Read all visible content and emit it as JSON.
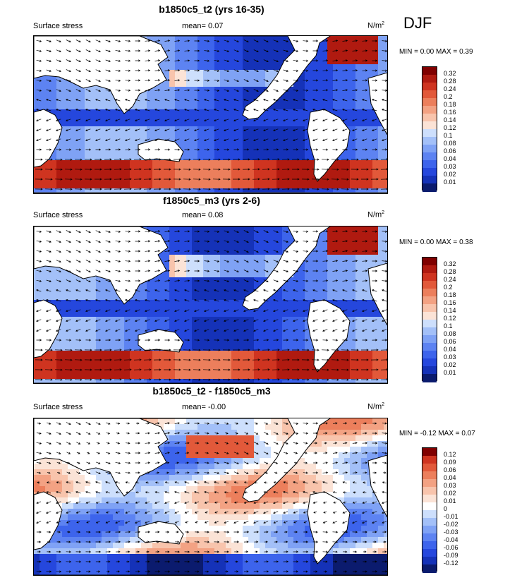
{
  "season": "DJF",
  "colors": {
    "full": [
      "#0b1b6e",
      "#1532b8",
      "#2547dd",
      "#3d64ec",
      "#5d83f2",
      "#7fa2f5",
      "#a3c0f8",
      "#cddffc",
      "#fbe3d6",
      "#f8c4ac",
      "#f3a283",
      "#ec7f5c",
      "#e2593a",
      "#cf3420",
      "#b01a10",
      "#800000"
    ],
    "diff": [
      "#0b1b6e",
      "#1532b8",
      "#2547dd",
      "#3d64ec",
      "#5d83f2",
      "#7fa2f5",
      "#a3c0f8",
      "#cddffc",
      "#ffffff",
      "#fbe3d6",
      "#f8c4ac",
      "#f3a283",
      "#ec7f5c",
      "#e2593a",
      "#cf3420",
      "#800000"
    ]
  },
  "panels": [
    {
      "title": "b1850c5_t2 (yrs 16-35)",
      "variable": "Surface stress",
      "mean_label": "mean=",
      "mean_value": "0.07",
      "units": "N/m",
      "units_sup": "2",
      "min_label": "MIN =",
      "min_value": "0.00",
      "max_label": "MAX =",
      "max_value": "0.39",
      "colorbar_labels": [
        "0.32",
        "0.28",
        "0.24",
        "0.2",
        "0.18",
        "0.16",
        "0.14",
        "0.12",
        "0.1",
        "0.08",
        "0.06",
        "0.04",
        "0.03",
        "0.02",
        "0.01"
      ]
    },
    {
      "title": "f1850c5_m3 (yrs 2-6)",
      "variable": "Surface stress",
      "mean_label": "mean=",
      "mean_value": "0.08",
      "units": "N/m",
      "units_sup": "2",
      "min_label": "MIN =",
      "min_value": "0.00",
      "max_label": "MAX =",
      "max_value": "0.38",
      "colorbar_labels": [
        "0.32",
        "0.28",
        "0.24",
        "0.2",
        "0.18",
        "0.16",
        "0.14",
        "0.12",
        "0.1",
        "0.08",
        "0.06",
        "0.04",
        "0.03",
        "0.02",
        "0.01"
      ]
    },
    {
      "title": "b1850c5_t2 - f1850c5_m3",
      "variable": "Surface stress",
      "mean_label": "mean=",
      "mean_value": "-0.00",
      "units": "N/m",
      "units_sup": "2",
      "min_label": "MIN =",
      "min_value": "-0.12",
      "max_label": "MAX =",
      "max_value": "0.07",
      "colorbar_labels": [
        "0.12",
        "0.09",
        "0.06",
        "0.04",
        "0.03",
        "0.02",
        "0.01",
        "0",
        "-0.01",
        "-0.02",
        "-0.03",
        "-0.04",
        "-0.06",
        "-0.09",
        "-0.12"
      ]
    }
  ]
}
